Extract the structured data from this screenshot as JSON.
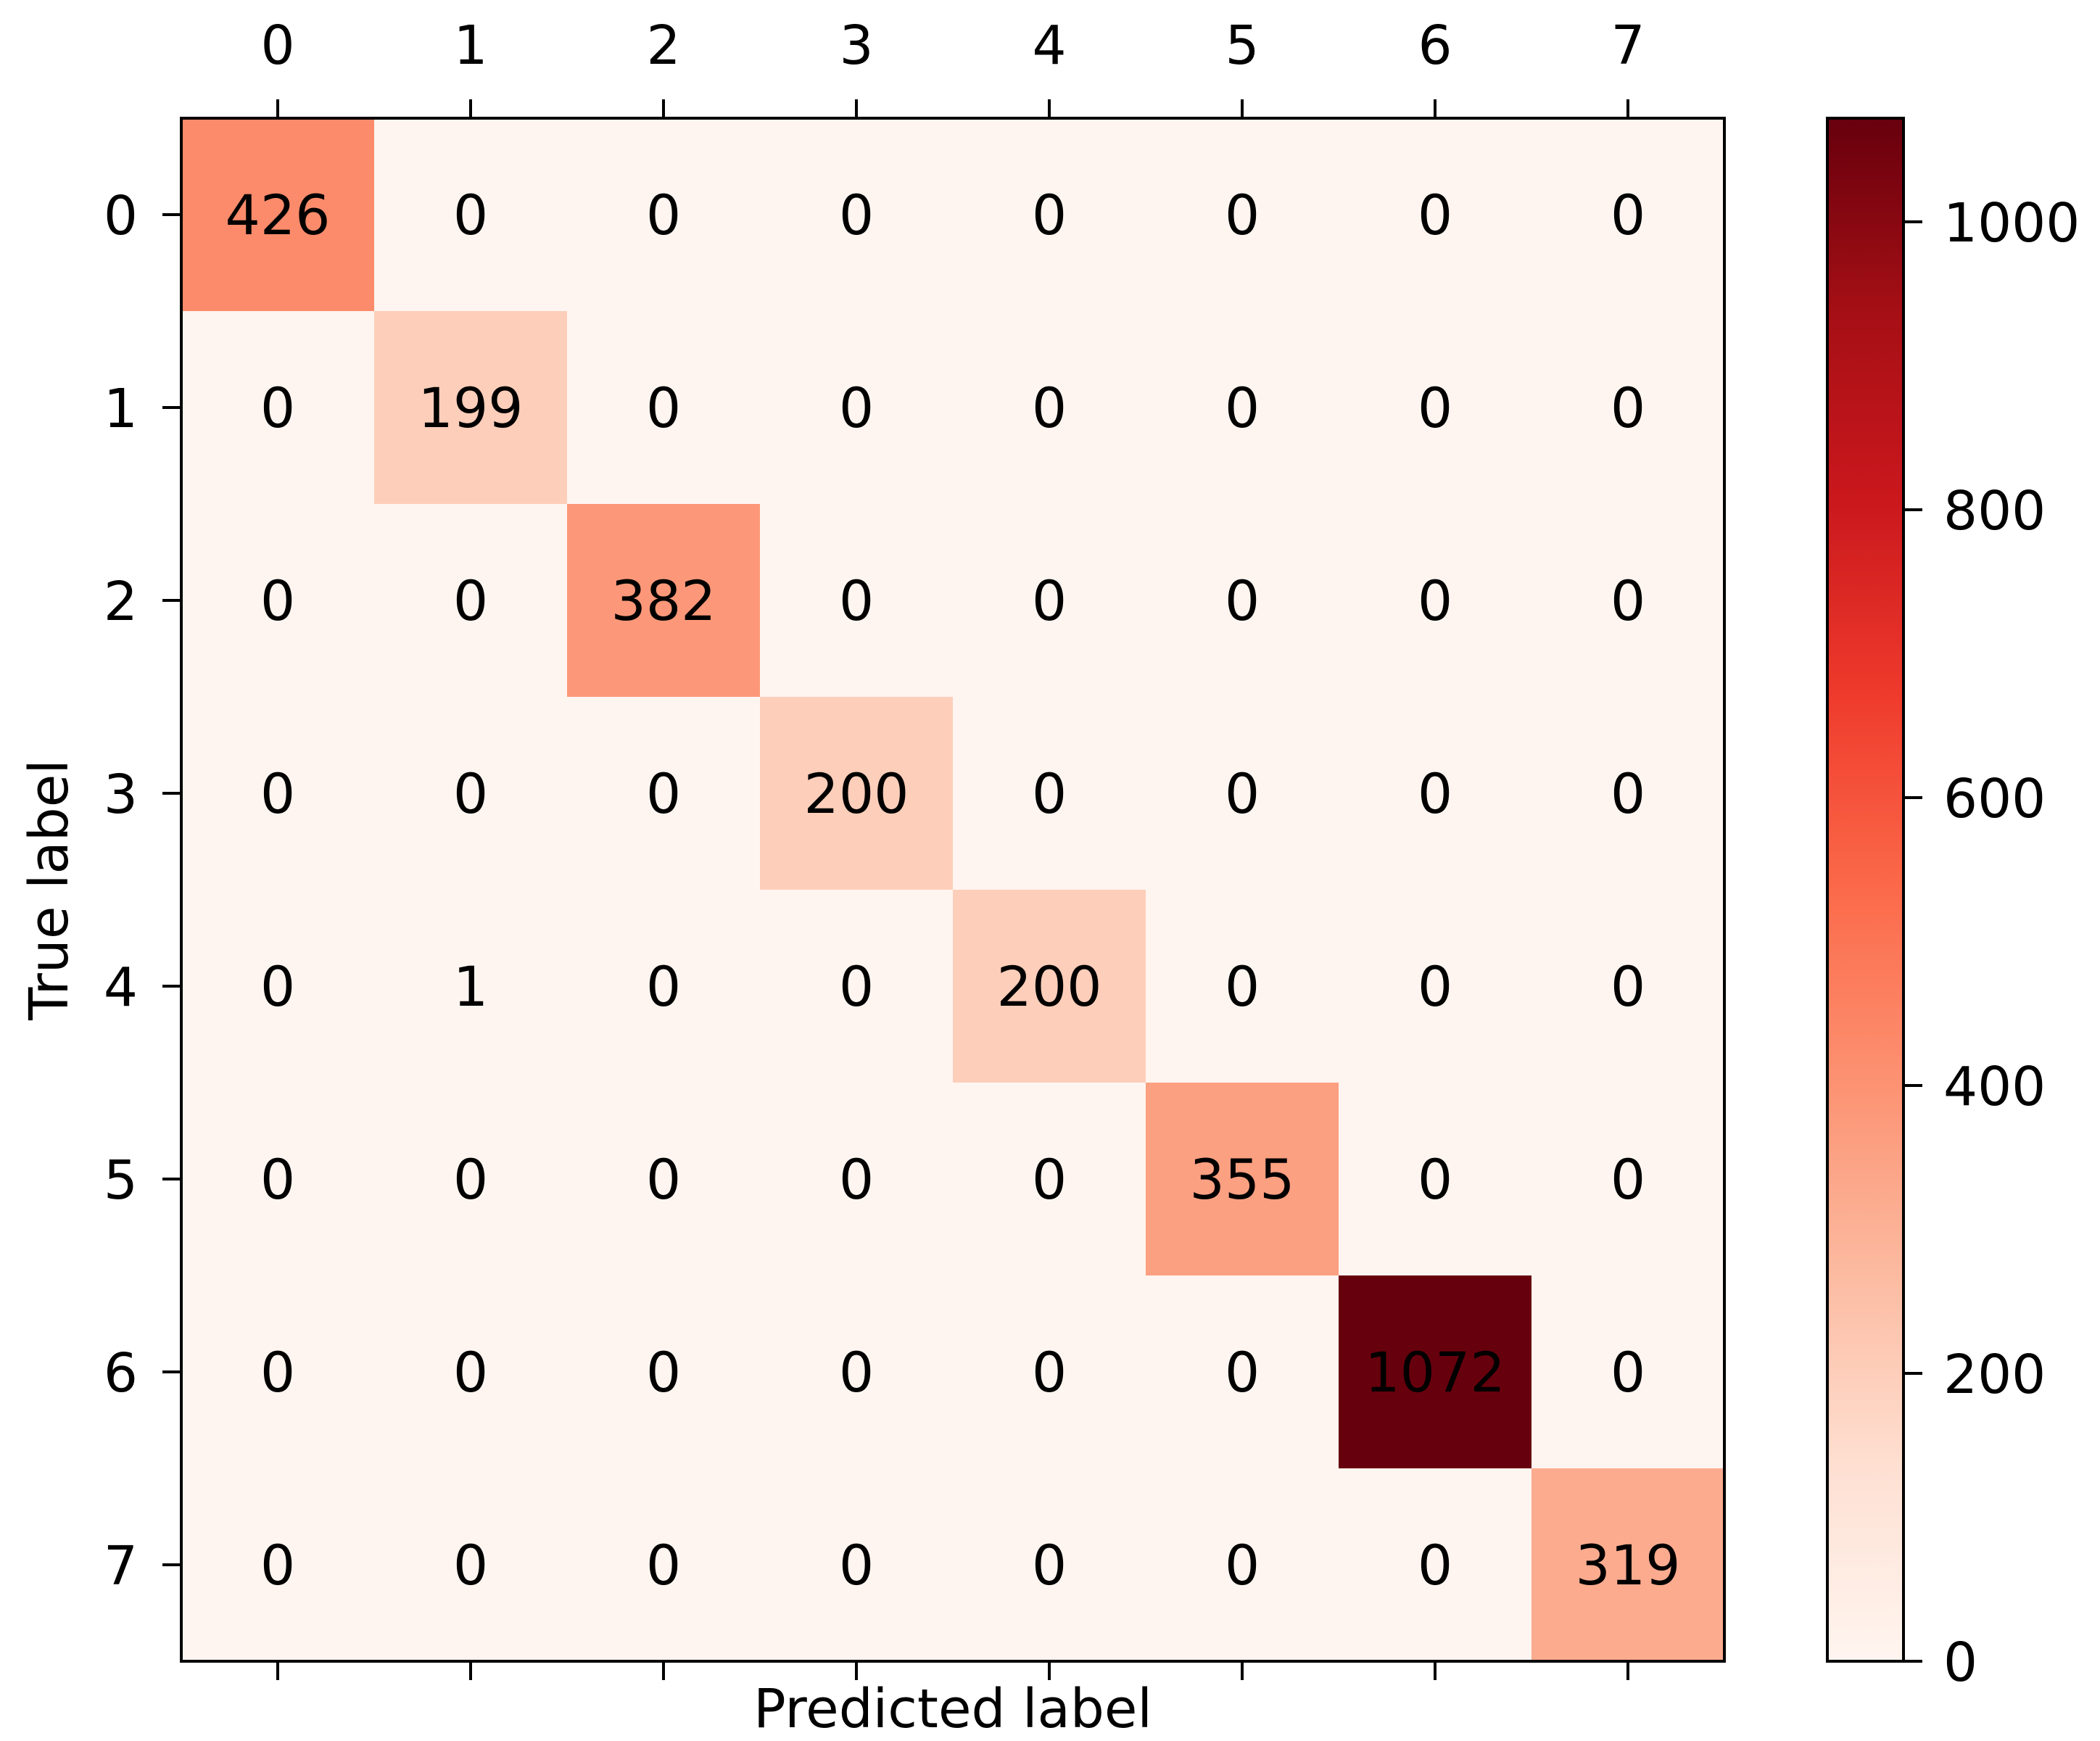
{
  "chart_data": {
    "type": "heatmap",
    "title": "",
    "xlabel": "Predicted label",
    "ylabel": "True label",
    "x_categories": [
      "0",
      "1",
      "2",
      "3",
      "4",
      "5",
      "6",
      "7"
    ],
    "y_categories": [
      "0",
      "1",
      "2",
      "3",
      "4",
      "5",
      "6",
      "7"
    ],
    "matrix": [
      [
        426,
        0,
        0,
        0,
        0,
        0,
        0,
        0
      ],
      [
        0,
        199,
        0,
        0,
        0,
        0,
        0,
        0
      ],
      [
        0,
        0,
        382,
        0,
        0,
        0,
        0,
        0
      ],
      [
        0,
        0,
        0,
        200,
        0,
        0,
        0,
        0
      ],
      [
        0,
        1,
        0,
        0,
        200,
        0,
        0,
        0
      ],
      [
        0,
        0,
        0,
        0,
        0,
        355,
        0,
        0
      ],
      [
        0,
        0,
        0,
        0,
        0,
        0,
        1072,
        0
      ],
      [
        0,
        0,
        0,
        0,
        0,
        0,
        0,
        319
      ]
    ],
    "colormap": "Reds",
    "color_range": [
      0,
      1072
    ],
    "colorbar_ticks": [
      0,
      200,
      400,
      600,
      800,
      1000
    ],
    "colorbar_tick_labels": [
      "0",
      "200",
      "400",
      "600",
      "800",
      "1000"
    ],
    "x_tick_position": "top",
    "legend": "colorbar-right",
    "grid": false
  }
}
